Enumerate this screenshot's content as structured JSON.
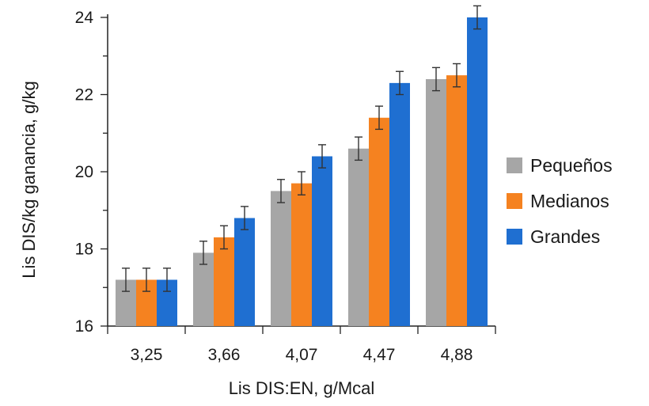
{
  "chart_data": {
    "type": "bar",
    "title": "",
    "xlabel": "Lis DIS:EN, g/Mcal",
    "ylabel": "Lis DIS/kg ganancia, g/kg",
    "categories": [
      "3,25",
      "3,66",
      "4,07",
      "4,47",
      "4,88"
    ],
    "ylim": [
      16,
      24
    ],
    "yticks": [
      "16",
      "18",
      "20",
      "22",
      "24"
    ],
    "grid": false,
    "legend_position": "right",
    "error_bars": true,
    "series": [
      {
        "name": "Pequeños",
        "color": "#a6a6a6",
        "values": [
          17.2,
          17.9,
          19.5,
          20.6,
          22.4
        ],
        "errors": [
          0.3,
          0.3,
          0.3,
          0.3,
          0.3
        ]
      },
      {
        "name": "Medianos",
        "color": "#f58220",
        "values": [
          17.2,
          18.3,
          19.7,
          21.4,
          22.5
        ],
        "errors": [
          0.3,
          0.3,
          0.3,
          0.3,
          0.3
        ]
      },
      {
        "name": "Grandes",
        "color": "#1f6fd1",
        "values": [
          17.2,
          18.8,
          20.4,
          22.3,
          24.0
        ],
        "errors": [
          0.3,
          0.3,
          0.3,
          0.3,
          0.3
        ]
      }
    ]
  }
}
